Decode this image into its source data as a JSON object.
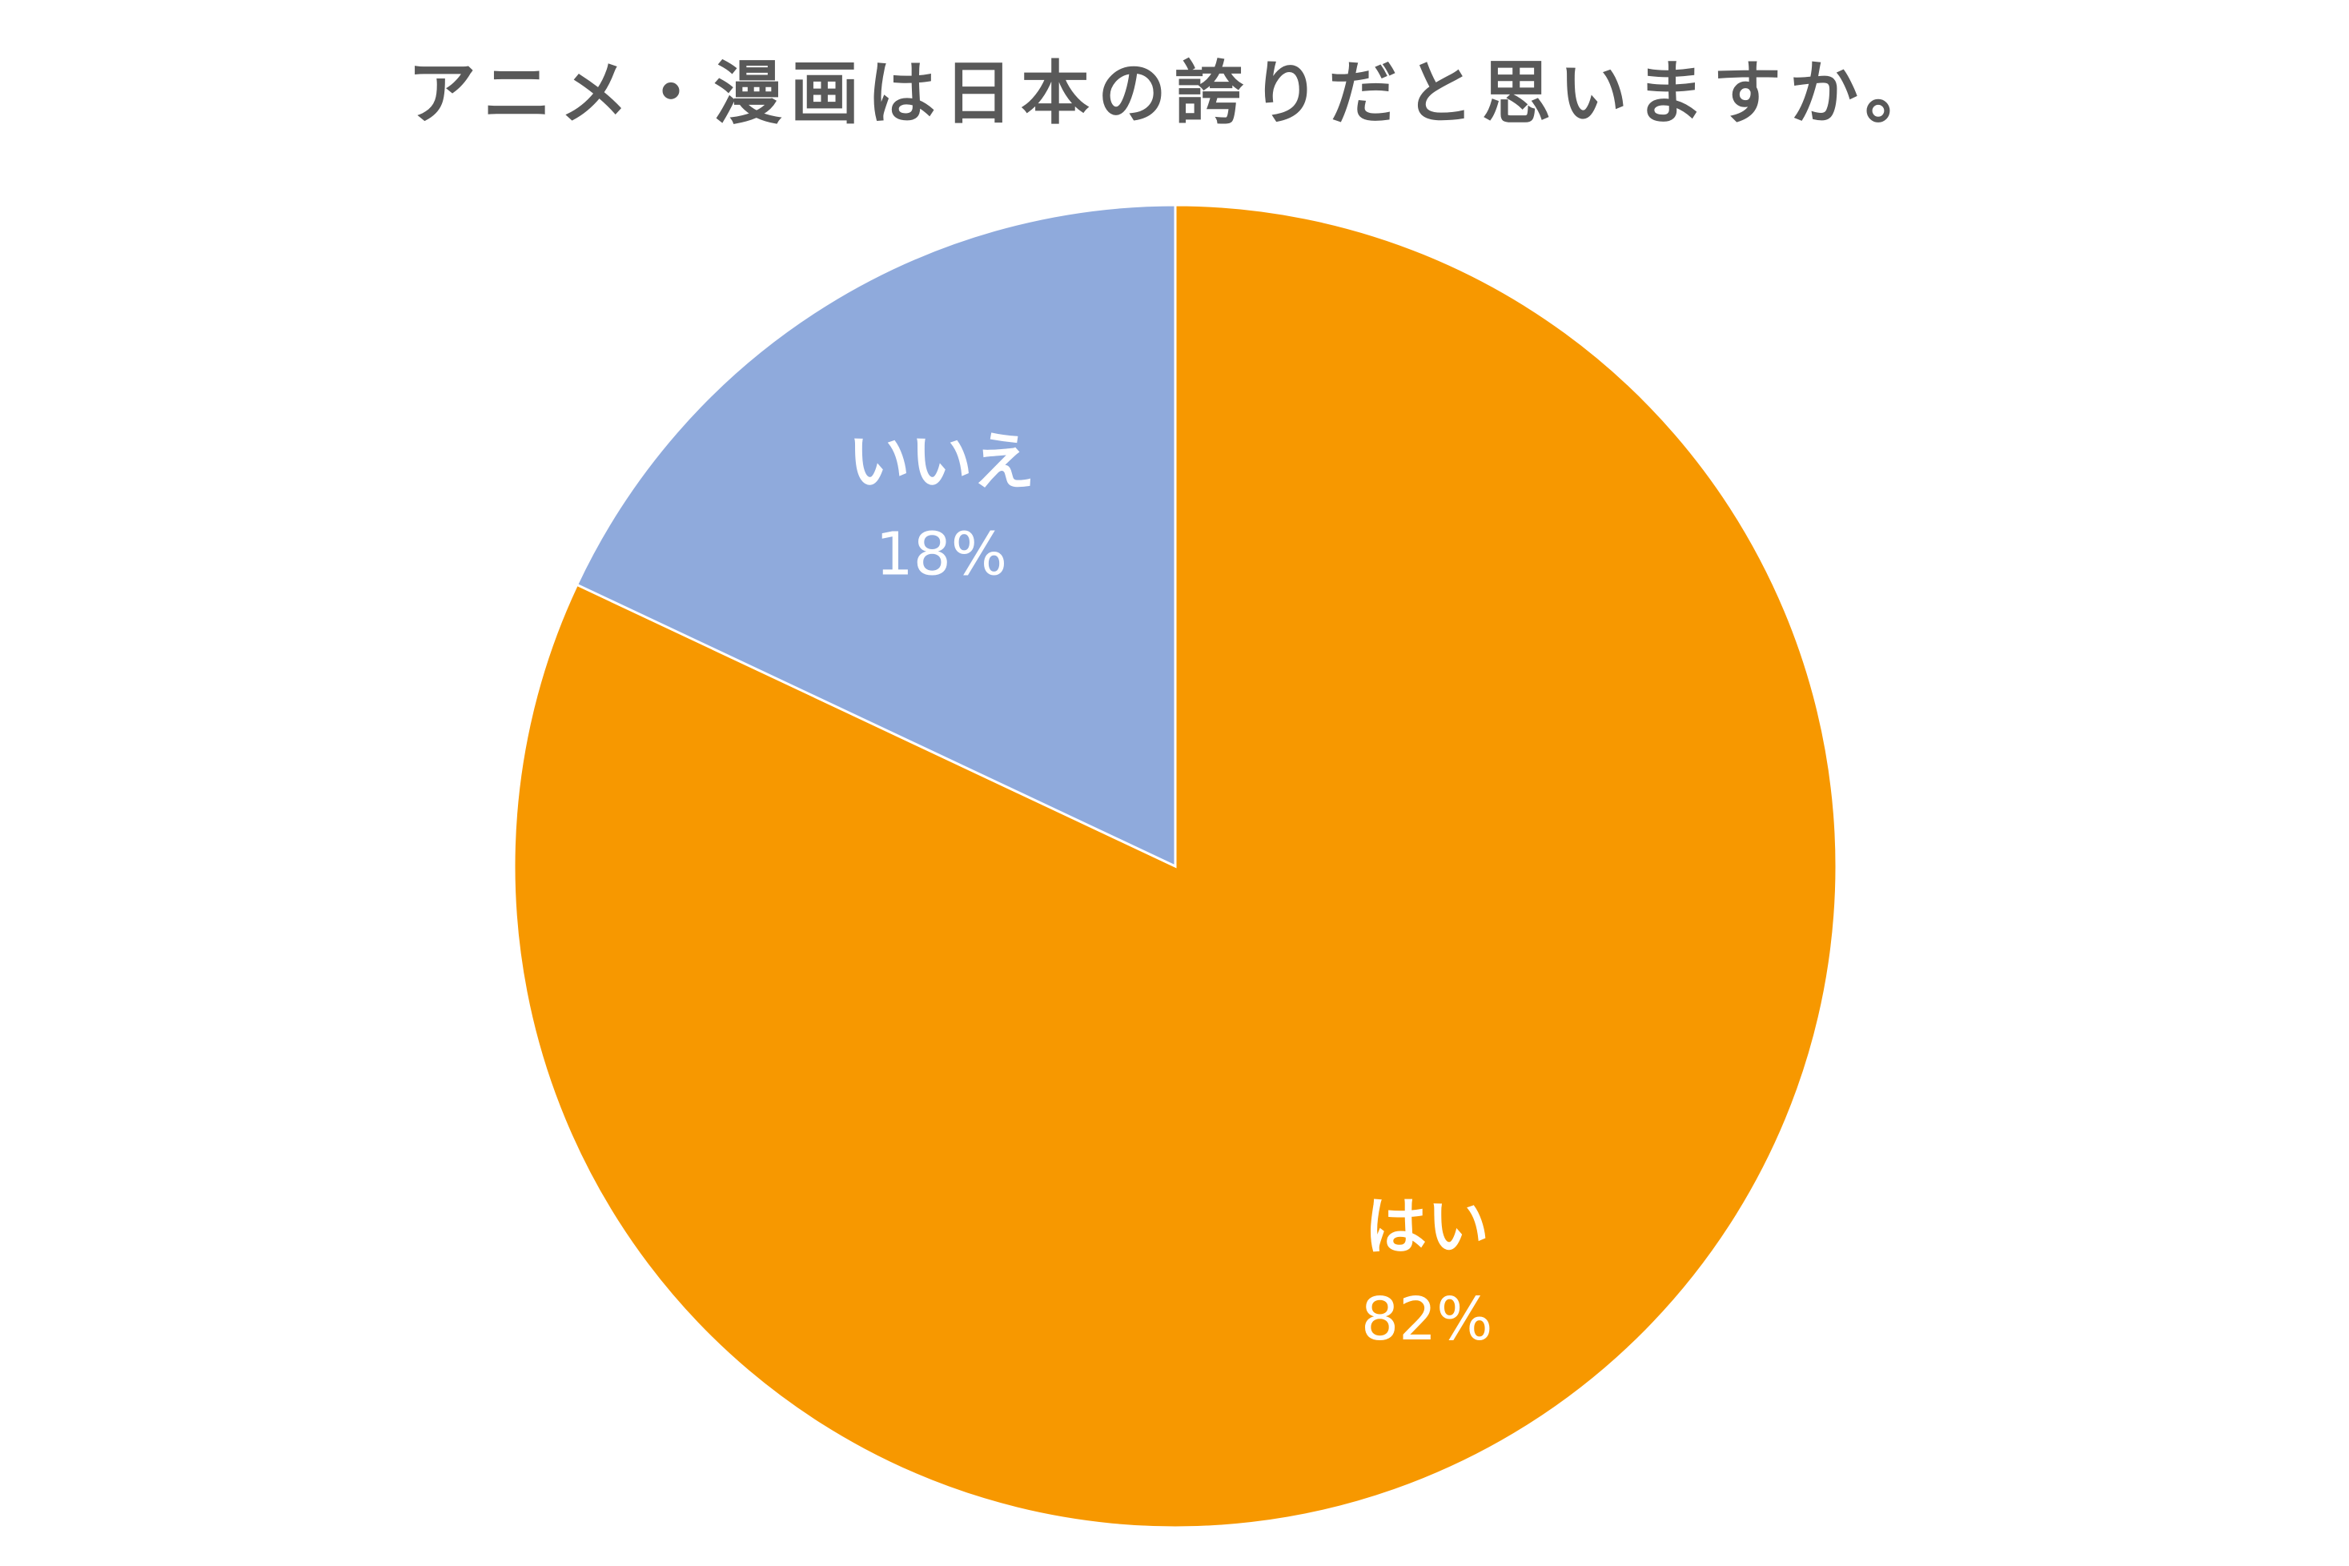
{
  "chart_data": {
    "type": "pie",
    "title": "アニメ・漫画は日本の誇りだと思いますか。",
    "slices": [
      {
        "label": "はい",
        "value": 82,
        "value_text": "82%",
        "color": "#F79800"
      },
      {
        "label": "いいえ",
        "value": 18,
        "value_text": "18%",
        "color": "#8FAADC"
      }
    ],
    "start": "12 o'clock",
    "direction": "clockwise",
    "legend": "none",
    "data_labels": "inside"
  }
}
